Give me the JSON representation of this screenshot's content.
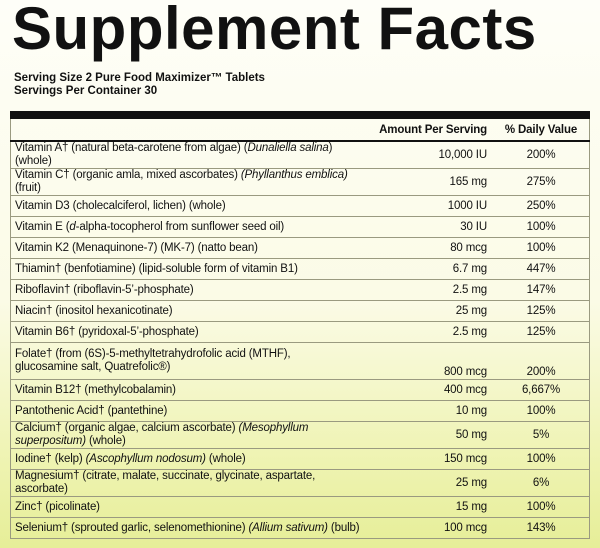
{
  "title": "Supplement Facts",
  "serving_size": "Serving Size 2 Pure Food Maximizer™ Tablets",
  "servings_per_container": "Servings Per Container 30",
  "table": {
    "header": [
      "Amount Per Serving",
      "% Daily Value"
    ],
    "rows": [
      {
        "name": [
          "Vitamin A† (natural beta-carotene from algae) (",
          {
            "i": "Dunaliella salina"
          },
          ") (whole)"
        ],
        "amount": "10,000 IU",
        "dv": "200%"
      },
      {
        "name": [
          "Vitamin C† (organic amla, mixed ascorbates) ",
          {
            "i": "(Phyllanthus emblica)"
          },
          " (fruit)"
        ],
        "amount": "165 mg",
        "dv": "275%"
      },
      {
        "name": [
          "Vitamin D3 (cholecalciferol, lichen) (whole)"
        ],
        "amount": "1000 IU",
        "dv": "250%"
      },
      {
        "name": [
          "Vitamin E (",
          {
            "i": "d"
          },
          "-alpha-tocopherol from sunflower seed oil)"
        ],
        "amount": "30 IU",
        "dv": "100%"
      },
      {
        "name": [
          "Vitamin K2 (Menaquinone-7) (MK-7) (natto bean)"
        ],
        "amount": "80 mcg",
        "dv": "100%"
      },
      {
        "name": [
          "Thiamin† (benfotiamine) (lipid-soluble form of vitamin B1)"
        ],
        "amount": "6.7 mg",
        "dv": "447%"
      },
      {
        "name": [
          "Riboflavin† (riboflavin-5’-phosphate)"
        ],
        "amount": "2.5 mg",
        "dv": "147%"
      },
      {
        "name": [
          "Niacin† (inositol hexanicotinate)"
        ],
        "amount": "25 mg",
        "dv": "125%"
      },
      {
        "name": [
          "Vitamin B6† (pyridoxal-5’-phosphate)"
        ],
        "amount": "2.5 mg",
        "dv": "125%"
      },
      {
        "name": [
          "Folate† (from (6S)-5-methyltetrahydrofolic acid (MTHF),",
          {
            "br": "glucosamine salt, Quatrefolic®)"
          }
        ],
        "amount": "800 mcg",
        "dv": "200%"
      },
      {
        "name": [
          "Vitamin B12† (methylcobalamin)"
        ],
        "amount": "400 mcg",
        "dv": "6,667%"
      },
      {
        "name": [
          "Pantothenic Acid† (pantethine)"
        ],
        "amount": "10 mg",
        "dv": "100%"
      },
      {
        "name": [
          "Calcium† (organic algae, calcium ascorbate) ",
          {
            "i": "(Mesophyllum superpositum)"
          },
          " (whole)"
        ],
        "amount": "50 mg",
        "dv": "5%"
      },
      {
        "name": [
          "Iodine† (kelp) ",
          {
            "i": "(Ascophyllum nodosum)"
          },
          " (whole)"
        ],
        "amount": "150 mcg",
        "dv": "100%"
      },
      {
        "name": [
          "Magnesium† (citrate, malate, succinate, glycinate, aspartate, ascorbate)"
        ],
        "amount": "25 mg",
        "dv": "6%"
      },
      {
        "name": [
          "Zinc† (picolinate)"
        ],
        "amount": "15 mg",
        "dv": "100%"
      },
      {
        "name": [
          "Selenium† (sprouted garlic, selenomethionine) ",
          {
            "i": "(Allium sativum)"
          },
          " (bulb)"
        ],
        "amount": "100 mcg",
        "dv": "143%"
      }
    ]
  }
}
